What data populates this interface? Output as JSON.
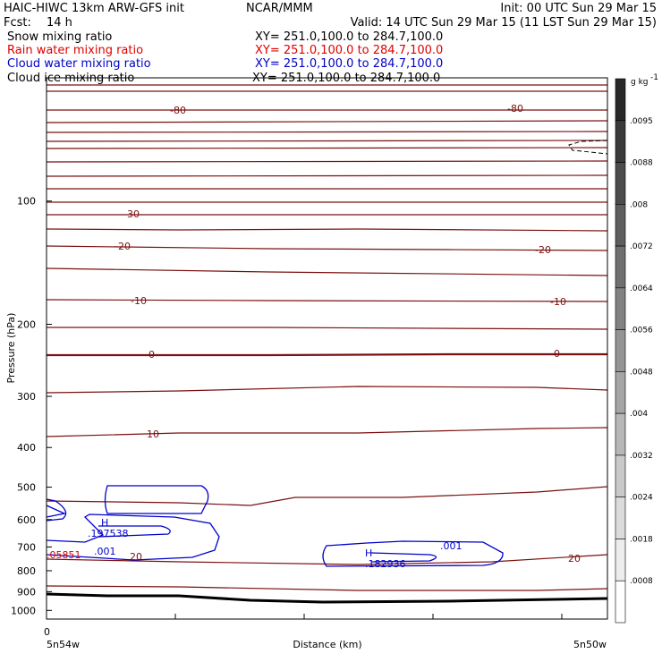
{
  "header": {
    "model": "HAIC-HIWC 13km ARW-GFS init",
    "org": "NCAR/MMM",
    "init": "Init: 00 UTC Sun 29 Mar 15",
    "fcst_label": "Fcst:",
    "fcst_value": "14 h",
    "valid": "Valid: 14 UTC Sun 29 Mar 15 (11 LST Sun 29 Mar 15)"
  },
  "fields": [
    {
      "name": "Snow mixing ratio",
      "xy": "XY= 251.0,100.0 to 284.7,100.0",
      "color": "#000000"
    },
    {
      "name": "Rain water mixing ratio",
      "xy": "XY= 251.0,100.0 to 284.7,100.0",
      "color": "#e00000"
    },
    {
      "name": "Cloud water mixing ratio",
      "xy": "XY= 251.0,100.0 to 284.7,100.0",
      "color": "#0000c8"
    },
    {
      "name": "Cloud ice mixing ratio",
      "xy": "XY= 251.0,100.0 to 284.7,100.0",
      "color": "#000000"
    }
  ],
  "colors": {
    "temperature": "#7a1010",
    "cloud_water": "#0000cc",
    "surface": "#000000"
  },
  "chart_data": {
    "type": "line",
    "xlabel": "Distance (km)",
    "ylabel": "Pressure (hPa)",
    "x_tick_labels": [
      "0"
    ],
    "x_endpoint_labels": [
      "5n54w",
      "5n50w"
    ],
    "y_ticks": [
      100,
      200,
      300,
      400,
      500,
      600,
      700,
      800,
      900,
      1000
    ],
    "y_scale": "log",
    "ylim": [
      1050,
      50
    ],
    "contour_labels": [
      {
        "text": "-80",
        "value": -80,
        "p": 123
      },
      {
        "text": "-80",
        "value": -80,
        "p": 123
      },
      {
        "text": "-30",
        "value": -30,
        "p": 265
      },
      {
        "text": "-20",
        "value": -20,
        "p": 325
      },
      {
        "text": "-20",
        "value": -20,
        "p": 338
      },
      {
        "text": "-10",
        "value": -10,
        "p": 458
      },
      {
        "text": "-10",
        "value": -10,
        "p": 460
      },
      {
        "text": "0",
        "value": 0,
        "p": 558
      },
      {
        "text": "0",
        "value": 0,
        "p": 557
      },
      {
        "text": "10",
        "value": 10,
        "p": 700
      },
      {
        "text": "20",
        "value": 20,
        "p": 940
      },
      {
        "text": "20",
        "value": 20,
        "p": 940
      }
    ],
    "cloud_water_labels": [
      {
        "text": "H",
        "p": 870
      },
      {
        "text": ".197538",
        "p": 890
      },
      {
        "text": ".001",
        "p": 925
      },
      {
        "text": ".001",
        "p": 920
      },
      {
        "text": "H",
        "p": 930
      },
      {
        "text": ".182936",
        "p": 955
      }
    ],
    "rain_label": ".05851",
    "colorbar": {
      "unit": "g kg",
      "unit_exp": "-1",
      "ticks": [
        ".0095",
        ".0088",
        ".008",
        ".0072",
        ".0064",
        ".0056",
        ".0048",
        ".004",
        ".0032",
        ".0024",
        ".0018",
        ".0008"
      ]
    }
  }
}
